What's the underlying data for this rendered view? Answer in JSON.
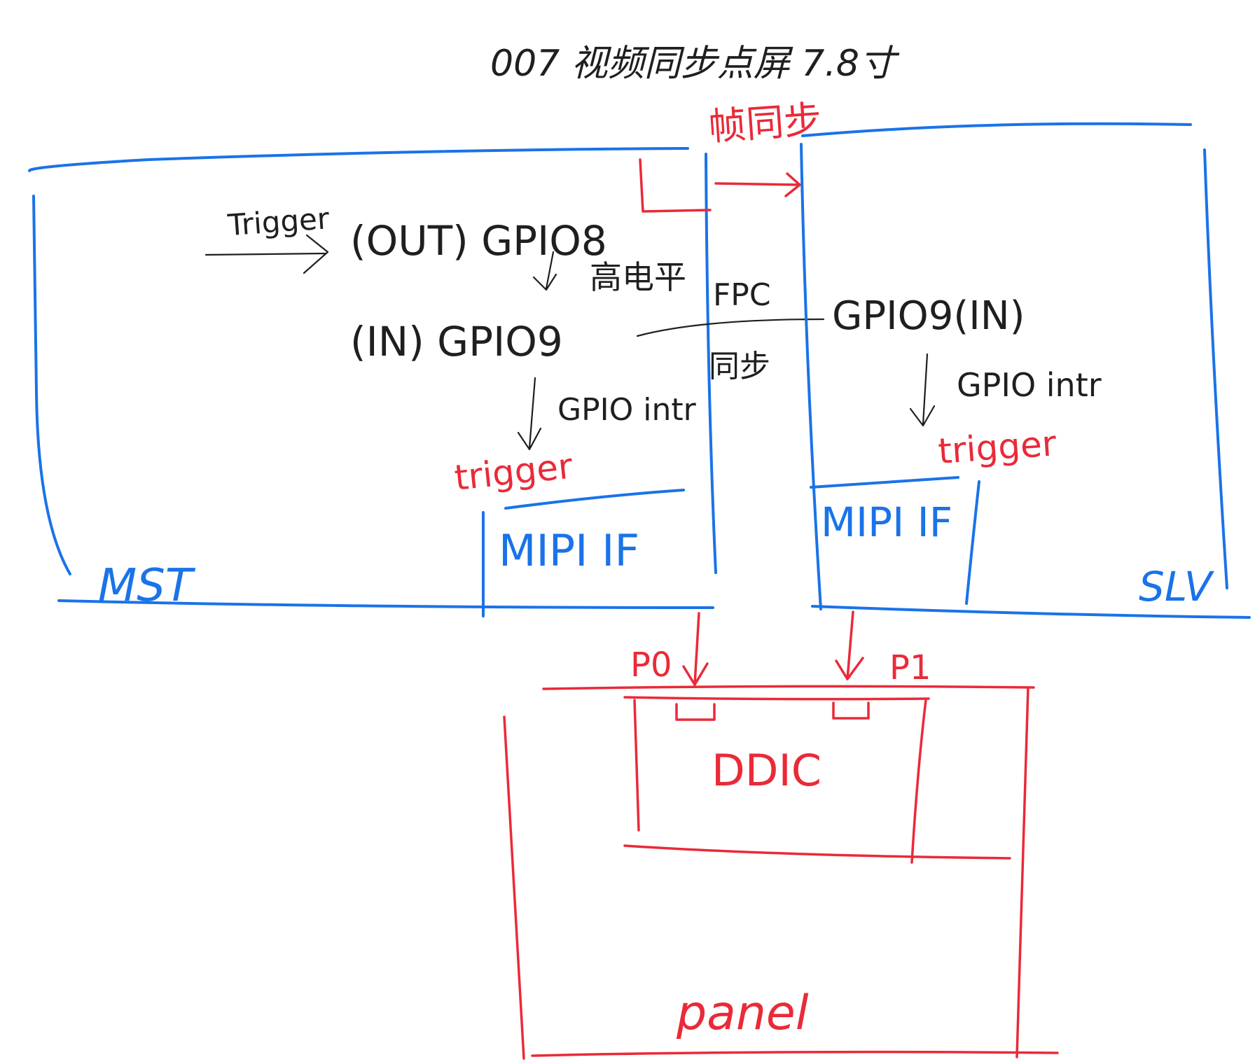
{
  "title": "007 视频同步点屏 7.8寸",
  "sync_label": "帧同步",
  "mst": {
    "name": "MST",
    "trigger_in": "Trigger",
    "gpio8": "(OUT) GPIO8",
    "high_level": "高电平",
    "gpio9": "(IN) GPIO9",
    "gpio_intr": "GPIO intr",
    "trigger": "trigger",
    "mipi": "MIPI IF"
  },
  "link": {
    "fpc": "FPC",
    "sync": "同步"
  },
  "slv": {
    "name": "SLV",
    "gpio9": "GPIO9(IN)",
    "gpio_intr": "GPIO intr",
    "trigger": "trigger",
    "mipi": "MIPI IF"
  },
  "panel": {
    "name": "panel",
    "ddic": "DDIC",
    "p0": "P0",
    "p1": "P1"
  },
  "colors": {
    "board": "#1a73e8",
    "annotation": "#ea2a38",
    "ink": "#1f1f1f"
  }
}
